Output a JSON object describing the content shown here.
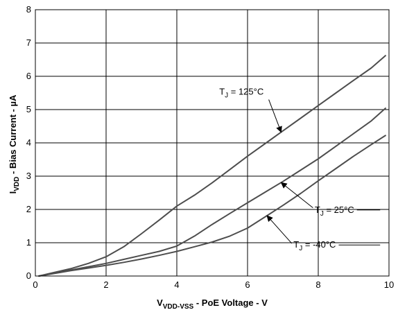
{
  "chart_data": {
    "type": "line",
    "xlabel": {
      "main": "V",
      "sub": "VDD-VSS",
      "rest": " - PoE Voltage - V"
    },
    "ylabel": {
      "main": "I",
      "sub": "VDD",
      "rest": " - Bias Current - µA"
    },
    "xlim": [
      0,
      10
    ],
    "ylim": [
      0,
      8
    ],
    "x_ticks": [
      "0",
      "2",
      "4",
      "6",
      "8",
      "10"
    ],
    "y_ticks": [
      "0",
      "1",
      "2",
      "3",
      "4",
      "5",
      "6",
      "7",
      "8"
    ],
    "grid": true,
    "series": [
      {
        "name": "T_J = 125°C",
        "label": {
          "pre": "T",
          "sub": "J",
          "post": " = 125°C"
        },
        "x": [
          0.1,
          0.5,
          1.0,
          1.5,
          2.0,
          2.5,
          3.0,
          3.5,
          4.0,
          4.5,
          5.0,
          5.5,
          6.0,
          6.5,
          7.0,
          7.5,
          8.0,
          8.5,
          9.0,
          9.5,
          9.9
        ],
        "y": [
          0.0,
          0.1,
          0.22,
          0.38,
          0.58,
          0.88,
          1.27,
          1.68,
          2.1,
          2.43,
          2.8,
          3.2,
          3.6,
          3.98,
          4.36,
          4.74,
          5.12,
          5.5,
          5.88,
          6.25,
          6.62
        ],
        "color": "#4d4d4d"
      },
      {
        "name": "T_J = 25°C",
        "label": {
          "pre": "T",
          "sub": "J",
          "post": " = 25°C"
        },
        "x": [
          0.1,
          0.5,
          1.0,
          1.5,
          2.0,
          2.5,
          3.0,
          3.5,
          4.0,
          4.5,
          5.0,
          5.5,
          6.0,
          6.5,
          7.0,
          7.5,
          8.0,
          8.5,
          9.0,
          9.5,
          9.9
        ],
        "y": [
          0.0,
          0.08,
          0.18,
          0.28,
          0.38,
          0.5,
          0.62,
          0.74,
          0.9,
          1.2,
          1.55,
          1.88,
          2.2,
          2.52,
          2.84,
          3.18,
          3.52,
          3.9,
          4.28,
          4.66,
          5.04
        ],
        "color": "#4d4d4d"
      },
      {
        "name": "T_J = -40°C",
        "label": {
          "pre": "T",
          "sub": "J",
          "post": " = -40°C"
        },
        "x": [
          0.1,
          0.5,
          1.0,
          1.5,
          2.0,
          2.5,
          3.0,
          3.5,
          4.0,
          4.5,
          5.0,
          5.5,
          6.0,
          6.5,
          7.0,
          7.5,
          8.0,
          8.5,
          9.0,
          9.5,
          9.9
        ],
        "y": [
          0.0,
          0.07,
          0.16,
          0.24,
          0.32,
          0.41,
          0.51,
          0.62,
          0.74,
          0.88,
          1.02,
          1.2,
          1.44,
          1.78,
          2.12,
          2.48,
          2.86,
          3.23,
          3.6,
          3.95,
          4.22
        ],
        "color": "#4d4d4d"
      }
    ]
  }
}
